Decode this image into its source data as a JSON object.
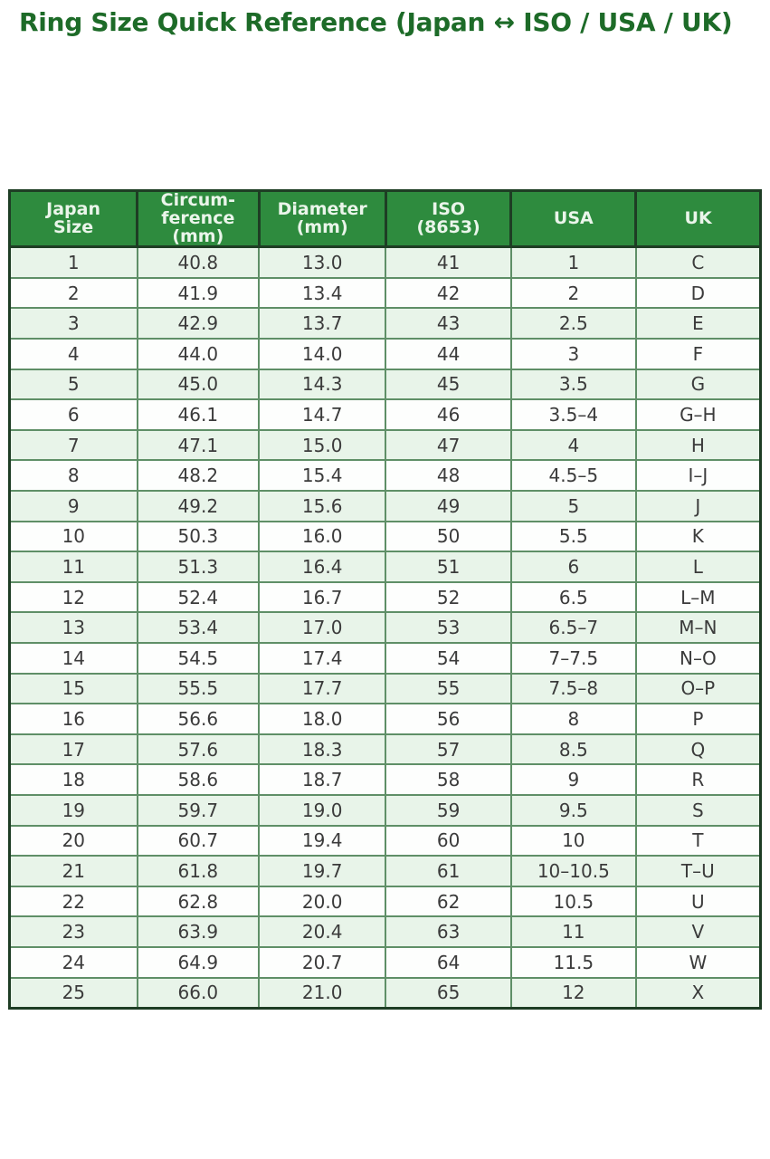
{
  "title": "Ring Size Quick Reference (Japan ↔ ISO / USA / UK)",
  "colors": {
    "title_green": "#1d6b28",
    "header_bg": "#2e8b3e",
    "header_text": "#eaf5ea",
    "row_alt_bg": "#e8f4e9",
    "row_bg": "#fdfefd",
    "grid_line": "#5f8f67",
    "outer_border": "#1e3d24",
    "cell_text": "#3b3b3b"
  },
  "table": {
    "columns": [
      "Japan\nSize",
      "Circum-\nference\n(mm)",
      "Diameter\n(mm)",
      "ISO\n(8653)",
      "USA",
      "UK"
    ],
    "rows": [
      [
        "1",
        "40.8",
        "13.0",
        "41",
        "1",
        "C"
      ],
      [
        "2",
        "41.9",
        "13.4",
        "42",
        "2",
        "D"
      ],
      [
        "3",
        "42.9",
        "13.7",
        "43",
        "2.5",
        "E"
      ],
      [
        "4",
        "44.0",
        "14.0",
        "44",
        "3",
        "F"
      ],
      [
        "5",
        "45.0",
        "14.3",
        "45",
        "3.5",
        "G"
      ],
      [
        "6",
        "46.1",
        "14.7",
        "46",
        "3.5–4",
        "G–H"
      ],
      [
        "7",
        "47.1",
        "15.0",
        "47",
        "4",
        "H"
      ],
      [
        "8",
        "48.2",
        "15.4",
        "48",
        "4.5–5",
        "I–J"
      ],
      [
        "9",
        "49.2",
        "15.6",
        "49",
        "5",
        "J"
      ],
      [
        "10",
        "50.3",
        "16.0",
        "50",
        "5.5",
        "K"
      ],
      [
        "11",
        "51.3",
        "16.4",
        "51",
        "6",
        "L"
      ],
      [
        "12",
        "52.4",
        "16.7",
        "52",
        "6.5",
        "L–M"
      ],
      [
        "13",
        "53.4",
        "17.0",
        "53",
        "6.5–7",
        "M–N"
      ],
      [
        "14",
        "54.5",
        "17.4",
        "54",
        "7–7.5",
        "N–O"
      ],
      [
        "15",
        "55.5",
        "17.7",
        "55",
        "7.5–8",
        "O–P"
      ],
      [
        "16",
        "56.6",
        "18.0",
        "56",
        "8",
        "P"
      ],
      [
        "17",
        "57.6",
        "18.3",
        "57",
        "8.5",
        "Q"
      ],
      [
        "18",
        "58.6",
        "18.7",
        "58",
        "9",
        "R"
      ],
      [
        "19",
        "59.7",
        "19.0",
        "59",
        "9.5",
        "S"
      ],
      [
        "20",
        "60.7",
        "19.4",
        "60",
        "10",
        "T"
      ],
      [
        "21",
        "61.8",
        "19.7",
        "61",
        "10–10.5",
        "T–U"
      ],
      [
        "22",
        "62.8",
        "20.0",
        "62",
        "10.5",
        "U"
      ],
      [
        "23",
        "63.9",
        "20.4",
        "63",
        "11",
        "V"
      ],
      [
        "24",
        "64.9",
        "20.7",
        "64",
        "11.5",
        "W"
      ],
      [
        "25",
        "66.0",
        "21.0",
        "65",
        "12",
        "X"
      ]
    ]
  }
}
